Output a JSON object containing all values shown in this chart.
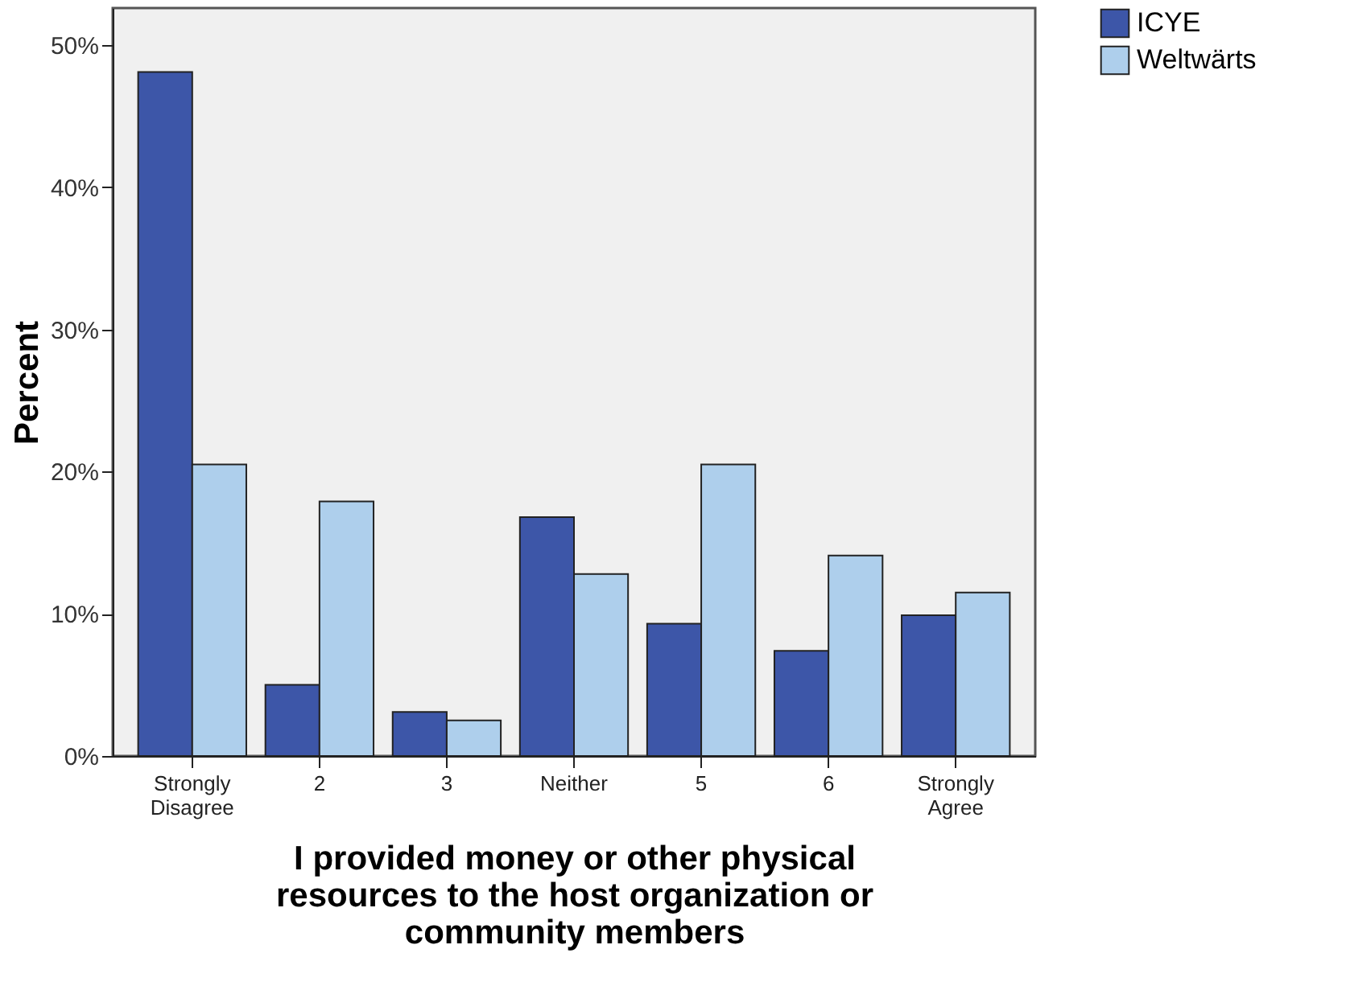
{
  "chart_data": {
    "type": "bar",
    "categories": [
      "Strongly Disagree",
      "2",
      "3",
      "Neither",
      "5",
      "6",
      "Strongly Agree"
    ],
    "series": [
      {
        "name": "ICYE",
        "color": "#3d56a8",
        "values": [
          48.1,
          5.0,
          3.1,
          16.8,
          9.3,
          7.4,
          9.9
        ]
      },
      {
        "name": "Weltwärts",
        "color": "#aecfec",
        "values": [
          20.5,
          17.9,
          2.5,
          12.8,
          20.5,
          14.1,
          11.5
        ]
      }
    ],
    "xlabel": "I provided money or other physical resources to the host organization or community members",
    "ylabel": "Percent",
    "ylim": [
      0,
      52.6
    ],
    "yticks": [
      {
        "value": 0,
        "label": "0%"
      },
      {
        "value": 10,
        "label": "10%"
      },
      {
        "value": 20,
        "label": "20%"
      },
      {
        "value": 30,
        "label": "30%"
      },
      {
        "value": 40,
        "label": "40%"
      },
      {
        "value": 50,
        "label": "50%"
      }
    ],
    "grid": false,
    "legend": "top right"
  }
}
